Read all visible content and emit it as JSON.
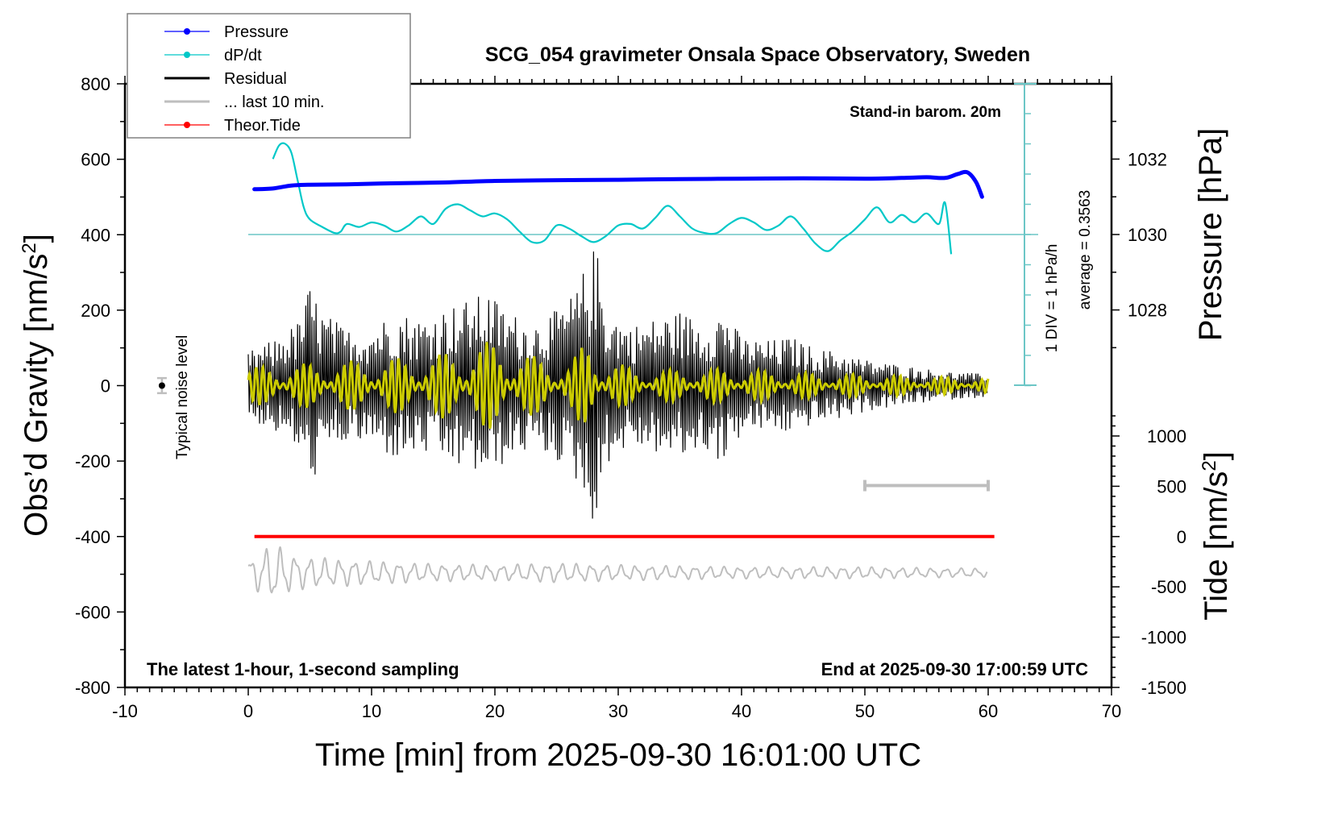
{
  "chart_data": {
    "type": "line",
    "title": "SCG_054 gravimeter Onsala Space Observatory, Sweden",
    "xlabel": "Time [min] from 2025-09-30 16:01:00 UTC",
    "ylabel_left": "Obs’d Gravity [nm/s",
    "ylabel_left_sup": "2",
    "ylabel_left_end": "]",
    "ylabel_right_pressure": "Pressure [hPa]",
    "ylabel_right_tide": "Tide [nm/s",
    "ylabel_right_tide_sup": "2",
    "ylabel_right_tide_end": "]",
    "xlim": [
      -10,
      70
    ],
    "ylim_left": [
      -800,
      800
    ],
    "pressure_axis": {
      "ticks": [
        1028,
        1030,
        1032
      ],
      "labels": [
        "1028",
        "1030",
        "1032"
      ]
    },
    "tide_axis": {
      "ylim": [
        -1500,
        1000
      ],
      "ticks": [
        -1500,
        -1000,
        -500,
        0,
        500,
        1000
      ],
      "labels": [
        "-1500",
        "-1000",
        "-500",
        "0",
        "500",
        "1000"
      ]
    },
    "x_ticks": [
      -10,
      0,
      10,
      20,
      30,
      40,
      50,
      60,
      70
    ],
    "x_tick_labels": [
      "-10",
      "0",
      "10",
      "20",
      "30",
      "40",
      "50",
      "60",
      "70"
    ],
    "y_ticks_left": [
      -800,
      -600,
      -400,
      -200,
      0,
      200,
      400,
      600,
      800
    ],
    "y_tick_labels_left": [
      "-800",
      "-600",
      "-400",
      "-200",
      "0",
      "200",
      "400",
      "600",
      "800"
    ],
    "grid": false,
    "legend": {
      "placement": "top-left",
      "entries": [
        {
          "label": "Pressure",
          "color": "#0000ff",
          "marker": "dot"
        },
        {
          "label": "dP/dt",
          "color": "#00c8c8",
          "marker": "dot"
        },
        {
          "label": "Residual",
          "color": "#000000",
          "marker": "none"
        },
        {
          "label": "... last 10 min.",
          "color": "#bebebe",
          "marker": "none"
        },
        {
          "label": "Theor.Tide",
          "color": "#ff0000",
          "marker": "dot"
        }
      ]
    },
    "annotations": {
      "barometer_note": "Stand-in barom. 20m",
      "dpdt_scale": "1 DIV = 1 hPa/h",
      "dpdt_average": "average = 0.3563",
      "noise_label": "Typical noise level",
      "sampling_note": "The latest 1-hour, 1-second sampling",
      "end_note": "End at 2025-09-30 17:00:59 UTC"
    },
    "series": [
      {
        "name": "Pressure",
        "axis": "pressure_hPa",
        "color": "#0000ff",
        "x": [
          0.5,
          2,
          3.5,
          5,
          8,
          12,
          16,
          20,
          25,
          30,
          35,
          40,
          45,
          50,
          53,
          55,
          56.5,
          57.5,
          58.3,
          59,
          59.5
        ],
        "y": [
          1031.2,
          1031.22,
          1031.3,
          1031.32,
          1031.33,
          1031.36,
          1031.38,
          1031.42,
          1031.44,
          1031.45,
          1031.47,
          1031.48,
          1031.49,
          1031.48,
          1031.5,
          1031.52,
          1031.5,
          1031.6,
          1031.65,
          1031.4,
          1031.0
        ]
      },
      {
        "name": "dP/dt",
        "axis": "dpdt_hPa_per_h",
        "zero_pressure_level": 1030,
        "div_hPa_per_h": 1,
        "color": "#00c8c8",
        "x": [
          2,
          2.5,
          3,
          3.5,
          4,
          4.5,
          5,
          6,
          7,
          7.5,
          8,
          9,
          10,
          11,
          12,
          13,
          14,
          15,
          16,
          17,
          18,
          19,
          20,
          21,
          22,
          23,
          24,
          25,
          26,
          27,
          28,
          29,
          30,
          31,
          32,
          33,
          34,
          35,
          36,
          37,
          38,
          39,
          40,
          41,
          42,
          43,
          44,
          45,
          46,
          47,
          48,
          49,
          50,
          51,
          52,
          53,
          54,
          55,
          56,
          56.5,
          57
        ],
        "y": [
          2.5,
          2.95,
          3.0,
          2.7,
          1.8,
          0.9,
          0.5,
          0.25,
          0.05,
          0.1,
          0.35,
          0.25,
          0.4,
          0.3,
          0.1,
          0.3,
          0.6,
          0.35,
          0.85,
          1.0,
          0.8,
          0.6,
          0.7,
          0.5,
          0.1,
          -0.25,
          -0.2,
          0.3,
          0.2,
          -0.05,
          -0.25,
          -0.05,
          0.3,
          0.35,
          0.2,
          0.55,
          0.95,
          0.6,
          0.2,
          0.05,
          0.05,
          0.35,
          0.55,
          0.4,
          0.15,
          0.3,
          0.6,
          0.2,
          -0.3,
          -0.55,
          -0.2,
          0.1,
          0.5,
          0.9,
          0.4,
          0.65,
          0.4,
          0.7,
          0.35,
          1.05,
          -0.65
        ]
      },
      {
        "name": "Residual",
        "axis": "gravity_nm_s2",
        "color": "#000000",
        "x_range": [
          0,
          60
        ],
        "envelope_x": [
          0,
          2,
          4,
          5,
          6,
          8,
          10,
          12,
          14,
          16,
          18,
          19.5,
          21,
          23,
          25,
          26.5,
          27.5,
          28.2,
          29,
          31,
          33,
          35,
          37,
          38.5,
          40,
          42,
          44,
          46,
          48,
          50,
          52,
          54,
          56,
          58,
          60
        ],
        "envelope_amp": [
          90,
          120,
          170,
          270,
          200,
          150,
          160,
          200,
          180,
          210,
          230,
          250,
          200,
          170,
          200,
          250,
          330,
          380,
          210,
          160,
          180,
          200,
          170,
          210,
          130,
          120,
          130,
          100,
          90,
          70,
          60,
          50,
          40,
          35,
          30
        ]
      },
      {
        "name": "Residual (filtered)",
        "axis": "gravity_nm_s2",
        "color": "#cccc00",
        "x_range": [
          0,
          60
        ],
        "envelope_x": [
          0,
          5,
          10,
          15,
          18,
          20,
          23,
          26,
          27.5,
          29,
          32,
          36,
          40,
          45,
          50,
          55,
          60
        ],
        "envelope_amp": [
          50,
          60,
          70,
          80,
          110,
          120,
          80,
          60,
          125,
          70,
          40,
          45,
          45,
          35,
          30,
          25,
          20
        ]
      },
      {
        "name": "Theor.Tide",
        "axis": "tide_nm_s2",
        "color": "#ff0000",
        "x": [
          0.5,
          60.5
        ],
        "y": [
          0,
          0
        ]
      },
      {
        "name": "... last 10 min.",
        "axis": "tide_nm_s2",
        "color": "#bebebe",
        "x_range": [
          0,
          60
        ],
        "offset": -360,
        "envelope_x": [
          0,
          1,
          2,
          3,
          4,
          6,
          10,
          15,
          20,
          25,
          30,
          35,
          40,
          45,
          50,
          55,
          60
        ],
        "envelope_amp": [
          120,
          220,
          300,
          230,
          170,
          150,
          120,
          90,
          80,
          100,
          80,
          70,
          60,
          60,
          60,
          50,
          45
        ]
      }
    ],
    "noise_marker": {
      "x": -7,
      "y": 0,
      "error": 20
    },
    "last10_bar": {
      "x_start": 50,
      "x_end": 60,
      "y": -265
    }
  }
}
